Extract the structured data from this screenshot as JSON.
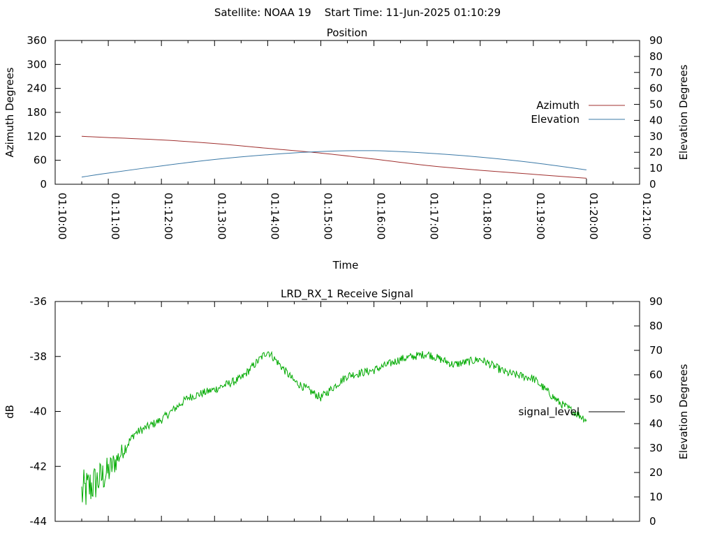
{
  "header": {
    "title": "Satellite: NOAA 19    Start Time: 11-Jun-2025 01:10:29"
  },
  "chart_data": [
    {
      "type": "line",
      "title": "Position",
      "xlabel": "Time",
      "ylabel": "Azimuth Degrees",
      "y2label": "Elevation Degrees",
      "ylim": [
        0,
        360
      ],
      "y2lim": [
        0,
        90
      ],
      "xlim": [
        "01:10:00",
        "01:21:00"
      ],
      "x_ticks": [
        "01:10:00",
        "01:11:00",
        "01:12:00",
        "01:13:00",
        "01:14:00",
        "01:15:00",
        "01:16:00",
        "01:17:00",
        "01:18:00",
        "01:19:00",
        "01:20:00",
        "01:21:00"
      ],
      "y_ticks": [
        "0",
        "60",
        "120",
        "180",
        "240",
        "300",
        "360"
      ],
      "y2_ticks": [
        "0",
        "10",
        "20",
        "30",
        "40",
        "50",
        "60",
        "70",
        "80",
        "90"
      ],
      "legend_position": "right",
      "x": [
        "01:10:30",
        "01:11:00",
        "01:12:00",
        "01:13:00",
        "01:14:00",
        "01:15:00",
        "01:16:00",
        "01:17:00",
        "01:18:00",
        "01:19:00",
        "01:20:00"
      ],
      "series": [
        {
          "name": "Azimuth",
          "axis": "left",
          "color": "#a0302f",
          "values": [
            120,
            117,
            111,
            102,
            90,
            78,
            63,
            47,
            35,
            25,
            15
          ]
        },
        {
          "name": "Elevation",
          "axis": "right",
          "color": "#3a78a6",
          "values": [
            4.5,
            7,
            11.5,
            15.5,
            18.5,
            20.5,
            21,
            19.5,
            17,
            13.5,
            9
          ]
        }
      ]
    },
    {
      "type": "line",
      "title": "LRD_RX_1 Receive Signal",
      "ylabel": "dB",
      "y2label": "Elevation Degrees",
      "ylim": [
        -44,
        -36
      ],
      "y2lim": [
        0,
        90
      ],
      "y_ticks": [
        "-36",
        "-38",
        "-40",
        "-42",
        "-44"
      ],
      "y2_ticks": [
        "0",
        "10",
        "20",
        "30",
        "40",
        "50",
        "60",
        "70",
        "80",
        "90"
      ],
      "legend_position": "right",
      "x": [
        "01:10:30",
        "01:11:00",
        "01:11:30",
        "01:12:00",
        "01:12:30",
        "01:13:00",
        "01:13:30",
        "01:14:00",
        "01:14:30",
        "01:15:00",
        "01:15:30",
        "01:16:00",
        "01:16:30",
        "01:17:00",
        "01:17:30",
        "01:18:00",
        "01:18:30",
        "01:19:00",
        "01:19:30",
        "01:20:00"
      ],
      "series": [
        {
          "name": "signal_level",
          "color": "#00aa00",
          "values": [
            -43.0,
            -42.2,
            -40.8,
            -40.3,
            -39.5,
            -39.2,
            -38.8,
            -37.8,
            -38.9,
            -39.5,
            -38.7,
            -38.5,
            -38.1,
            -37.9,
            -38.3,
            -38.1,
            -38.6,
            -38.8,
            -39.7,
            -40.3
          ]
        }
      ]
    }
  ]
}
